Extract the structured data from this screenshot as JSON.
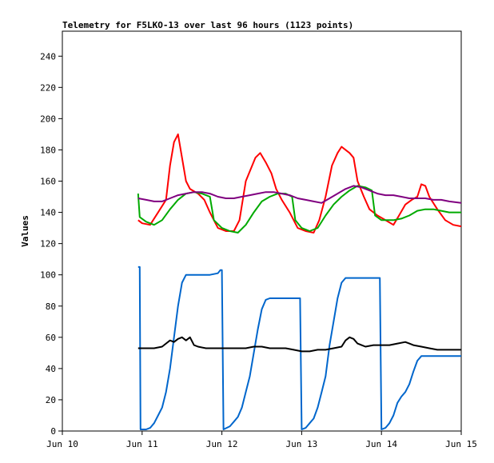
{
  "chart_data": {
    "type": "line",
    "title": "Telemetry for F5LKO-13 over last 96 hours (1123 points)",
    "xlabel": "",
    "ylabel": "Values",
    "xlim": [
      0,
      5
    ],
    "ylim": [
      0,
      256
    ],
    "x_ticks": [
      {
        "value": 0,
        "label": "Jun 10"
      },
      {
        "value": 1,
        "label": "Jun 11"
      },
      {
        "value": 2,
        "label": "Jun 12"
      },
      {
        "value": 3,
        "label": "Jun 13"
      },
      {
        "value": 4,
        "label": "Jun 14"
      },
      {
        "value": 5,
        "label": "Jun 15"
      }
    ],
    "y_ticks": [
      0,
      20,
      40,
      60,
      80,
      100,
      120,
      140,
      160,
      180,
      200,
      220,
      240
    ],
    "grid": false,
    "legend": "none",
    "x_unit_note": "days since Jun 10 00:00",
    "series": [
      {
        "color": "#ff0000",
        "points": [
          [
            0.95,
            135
          ],
          [
            1.0,
            133
          ],
          [
            1.1,
            132
          ],
          [
            1.2,
            140
          ],
          [
            1.3,
            148
          ],
          [
            1.35,
            170
          ],
          [
            1.4,
            185
          ],
          [
            1.45,
            190
          ],
          [
            1.5,
            175
          ],
          [
            1.55,
            160
          ],
          [
            1.6,
            155
          ],
          [
            1.7,
            152
          ],
          [
            1.78,
            148
          ],
          [
            1.85,
            140
          ],
          [
            1.95,
            130
          ],
          [
            2.05,
            128
          ],
          [
            2.15,
            128
          ],
          [
            2.22,
            135
          ],
          [
            2.3,
            160
          ],
          [
            2.38,
            170
          ],
          [
            2.42,
            175
          ],
          [
            2.48,
            178
          ],
          [
            2.55,
            172
          ],
          [
            2.62,
            165
          ],
          [
            2.68,
            155
          ],
          [
            2.75,
            148
          ],
          [
            2.85,
            140
          ],
          [
            2.95,
            130
          ],
          [
            3.05,
            128
          ],
          [
            3.15,
            127
          ],
          [
            3.22,
            135
          ],
          [
            3.3,
            150
          ],
          [
            3.38,
            170
          ],
          [
            3.45,
            178
          ],
          [
            3.5,
            182
          ],
          [
            3.55,
            180
          ],
          [
            3.6,
            178
          ],
          [
            3.65,
            175
          ],
          [
            3.7,
            160
          ],
          [
            3.78,
            150
          ],
          [
            3.85,
            142
          ],
          [
            3.95,
            138
          ],
          [
            4.05,
            135
          ],
          [
            4.15,
            132
          ],
          [
            4.22,
            138
          ],
          [
            4.3,
            145
          ],
          [
            4.38,
            148
          ],
          [
            4.45,
            150
          ],
          [
            4.5,
            158
          ],
          [
            4.55,
            157
          ],
          [
            4.6,
            150
          ],
          [
            4.7,
            142
          ],
          [
            4.8,
            135
          ],
          [
            4.9,
            132
          ],
          [
            5.0,
            131
          ]
        ]
      },
      {
        "color": "#00aa00",
        "points": [
          [
            0.95,
            152
          ],
          [
            0.97,
            137
          ],
          [
            1.05,
            134
          ],
          [
            1.15,
            132
          ],
          [
            1.25,
            135
          ],
          [
            1.35,
            142
          ],
          [
            1.45,
            148
          ],
          [
            1.55,
            152
          ],
          [
            1.65,
            153
          ],
          [
            1.75,
            152
          ],
          [
            1.85,
            150
          ],
          [
            1.9,
            135
          ],
          [
            2.0,
            130
          ],
          [
            2.1,
            128
          ],
          [
            2.2,
            127
          ],
          [
            2.3,
            132
          ],
          [
            2.4,
            140
          ],
          [
            2.5,
            147
          ],
          [
            2.6,
            150
          ],
          [
            2.7,
            152
          ],
          [
            2.8,
            152
          ],
          [
            2.88,
            150
          ],
          [
            2.92,
            135
          ],
          [
            3.0,
            130
          ],
          [
            3.1,
            128
          ],
          [
            3.2,
            130
          ],
          [
            3.3,
            138
          ],
          [
            3.4,
            145
          ],
          [
            3.5,
            150
          ],
          [
            3.6,
            154
          ],
          [
            3.7,
            157
          ],
          [
            3.8,
            156
          ],
          [
            3.88,
            154
          ],
          [
            3.92,
            138
          ],
          [
            4.0,
            135
          ],
          [
            4.15,
            135
          ],
          [
            4.25,
            136
          ],
          [
            4.35,
            138
          ],
          [
            4.45,
            141
          ],
          [
            4.55,
            142
          ],
          [
            4.65,
            142
          ],
          [
            4.75,
            141
          ],
          [
            4.85,
            140
          ],
          [
            5.0,
            140
          ]
        ]
      },
      {
        "color": "#800080",
        "points": [
          [
            0.95,
            149
          ],
          [
            1.05,
            148
          ],
          [
            1.15,
            147
          ],
          [
            1.25,
            147
          ],
          [
            1.35,
            149
          ],
          [
            1.45,
            151
          ],
          [
            1.55,
            152
          ],
          [
            1.65,
            153
          ],
          [
            1.75,
            153
          ],
          [
            1.85,
            152
          ],
          [
            1.95,
            150
          ],
          [
            2.05,
            149
          ],
          [
            2.15,
            149
          ],
          [
            2.25,
            150
          ],
          [
            2.35,
            151
          ],
          [
            2.45,
            152
          ],
          [
            2.55,
            153
          ],
          [
            2.65,
            153
          ],
          [
            2.75,
            152
          ],
          [
            2.85,
            151
          ],
          [
            2.95,
            149
          ],
          [
            3.05,
            148
          ],
          [
            3.15,
            147
          ],
          [
            3.25,
            146
          ],
          [
            3.35,
            149
          ],
          [
            3.45,
            152
          ],
          [
            3.55,
            155
          ],
          [
            3.65,
            157
          ],
          [
            3.75,
            156
          ],
          [
            3.85,
            154
          ],
          [
            3.95,
            152
          ],
          [
            4.05,
            151
          ],
          [
            4.15,
            151
          ],
          [
            4.25,
            150
          ],
          [
            4.35,
            149
          ],
          [
            4.45,
            149
          ],
          [
            4.55,
            149
          ],
          [
            4.65,
            148
          ],
          [
            4.75,
            148
          ],
          [
            4.85,
            147
          ],
          [
            5.0,
            146
          ]
        ]
      },
      {
        "color": "#0066cc",
        "points": [
          [
            0.95,
            105
          ],
          [
            0.97,
            105
          ],
          [
            0.98,
            1
          ],
          [
            1.05,
            1
          ],
          [
            1.1,
            2
          ],
          [
            1.15,
            5
          ],
          [
            1.2,
            10
          ],
          [
            1.25,
            15
          ],
          [
            1.3,
            25
          ],
          [
            1.35,
            40
          ],
          [
            1.4,
            60
          ],
          [
            1.45,
            80
          ],
          [
            1.5,
            95
          ],
          [
            1.55,
            100
          ],
          [
            1.65,
            100
          ],
          [
            1.75,
            100
          ],
          [
            1.85,
            100
          ],
          [
            1.95,
            101
          ],
          [
            1.98,
            103
          ],
          [
            2.0,
            103
          ],
          [
            2.02,
            1
          ],
          [
            2.1,
            3
          ],
          [
            2.15,
            6
          ],
          [
            2.2,
            9
          ],
          [
            2.25,
            15
          ],
          [
            2.3,
            25
          ],
          [
            2.35,
            35
          ],
          [
            2.4,
            50
          ],
          [
            2.45,
            65
          ],
          [
            2.5,
            78
          ],
          [
            2.55,
            84
          ],
          [
            2.6,
            85
          ],
          [
            2.7,
            85
          ],
          [
            2.8,
            85
          ],
          [
            2.9,
            85
          ],
          [
            2.98,
            85
          ],
          [
            3.0,
            1
          ],
          [
            3.05,
            2
          ],
          [
            3.1,
            5
          ],
          [
            3.15,
            8
          ],
          [
            3.2,
            15
          ],
          [
            3.25,
            25
          ],
          [
            3.3,
            35
          ],
          [
            3.35,
            55
          ],
          [
            3.4,
            70
          ],
          [
            3.45,
            85
          ],
          [
            3.5,
            95
          ],
          [
            3.55,
            98
          ],
          [
            3.65,
            98
          ],
          [
            3.75,
            98
          ],
          [
            3.85,
            98
          ],
          [
            3.95,
            98
          ],
          [
            3.98,
            98
          ],
          [
            4.0,
            1
          ],
          [
            4.05,
            2
          ],
          [
            4.1,
            5
          ],
          [
            4.15,
            10
          ],
          [
            4.2,
            18
          ],
          [
            4.25,
            22
          ],
          [
            4.3,
            25
          ],
          [
            4.35,
            30
          ],
          [
            4.4,
            38
          ],
          [
            4.45,
            45
          ],
          [
            4.5,
            48
          ],
          [
            4.6,
            48
          ],
          [
            4.7,
            48
          ],
          [
            4.8,
            48
          ],
          [
            4.9,
            48
          ],
          [
            5.0,
            48
          ]
        ]
      },
      {
        "color": "#000000",
        "points": [
          [
            0.95,
            53
          ],
          [
            1.05,
            53
          ],
          [
            1.15,
            53
          ],
          [
            1.25,
            54
          ],
          [
            1.3,
            56
          ],
          [
            1.35,
            58
          ],
          [
            1.4,
            57
          ],
          [
            1.45,
            59
          ],
          [
            1.5,
            60
          ],
          [
            1.55,
            58
          ],
          [
            1.6,
            60
          ],
          [
            1.65,
            55
          ],
          [
            1.7,
            54
          ],
          [
            1.8,
            53
          ],
          [
            1.9,
            53
          ],
          [
            2.0,
            53
          ],
          [
            2.1,
            53
          ],
          [
            2.2,
            53
          ],
          [
            2.3,
            53
          ],
          [
            2.4,
            54
          ],
          [
            2.5,
            54
          ],
          [
            2.6,
            53
          ],
          [
            2.7,
            53
          ],
          [
            2.8,
            53
          ],
          [
            2.9,
            52
          ],
          [
            3.0,
            51
          ],
          [
            3.1,
            51
          ],
          [
            3.2,
            52
          ],
          [
            3.3,
            52
          ],
          [
            3.4,
            53
          ],
          [
            3.5,
            54
          ],
          [
            3.55,
            58
          ],
          [
            3.6,
            60
          ],
          [
            3.65,
            59
          ],
          [
            3.7,
            56
          ],
          [
            3.75,
            55
          ],
          [
            3.8,
            54
          ],
          [
            3.9,
            55
          ],
          [
            4.0,
            55
          ],
          [
            4.1,
            55
          ],
          [
            4.2,
            56
          ],
          [
            4.3,
            57
          ],
          [
            4.35,
            56
          ],
          [
            4.4,
            55
          ],
          [
            4.5,
            54
          ],
          [
            4.6,
            53
          ],
          [
            4.7,
            52
          ],
          [
            4.8,
            52
          ],
          [
            4.9,
            52
          ],
          [
            5.0,
            52
          ]
        ]
      }
    ]
  }
}
